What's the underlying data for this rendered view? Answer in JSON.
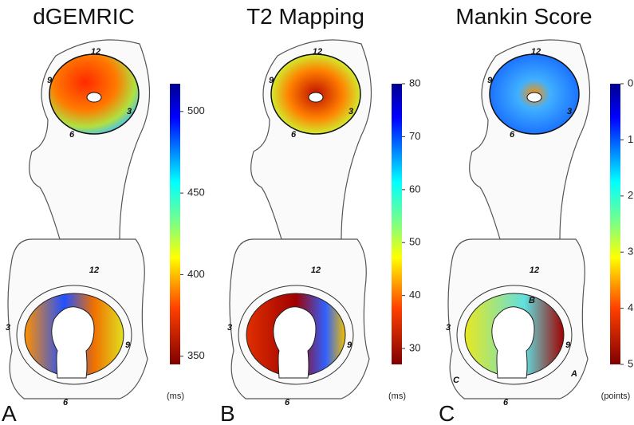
{
  "panels": [
    {
      "title": "dGEMRIC",
      "letter": "A",
      "unit": "(ms)",
      "colorbar": {
        "lim": [
          345,
          517
        ],
        "ticks": [
          350,
          400,
          450,
          500
        ]
      },
      "clock_top": [
        "12",
        "9",
        "3",
        "6"
      ],
      "clock_bottom": [
        "12",
        "3",
        "9",
        "6"
      ]
    },
    {
      "title": "T2 Mapping",
      "letter": "B",
      "unit": "(ms)",
      "colorbar": {
        "lim": [
          27,
          80
        ],
        "ticks": [
          30,
          40,
          50,
          60,
          70,
          80
        ]
      },
      "clock_top": [
        "12",
        "9",
        "3",
        "6"
      ],
      "clock_bottom": [
        "12",
        "3",
        "9",
        "6"
      ]
    },
    {
      "title": "Mankin Score",
      "letter": "C",
      "unit": "(points)",
      "colorbar": {
        "lim": [
          5,
          0
        ],
        "ticks": [
          0,
          1,
          2,
          3,
          4,
          5
        ]
      },
      "clock_top": [
        "12",
        "9",
        "3",
        "6"
      ],
      "clock_bottom": [
        "12",
        "3",
        "9",
        "6"
      ],
      "regions": [
        "B",
        "C",
        "A"
      ]
    }
  ]
}
